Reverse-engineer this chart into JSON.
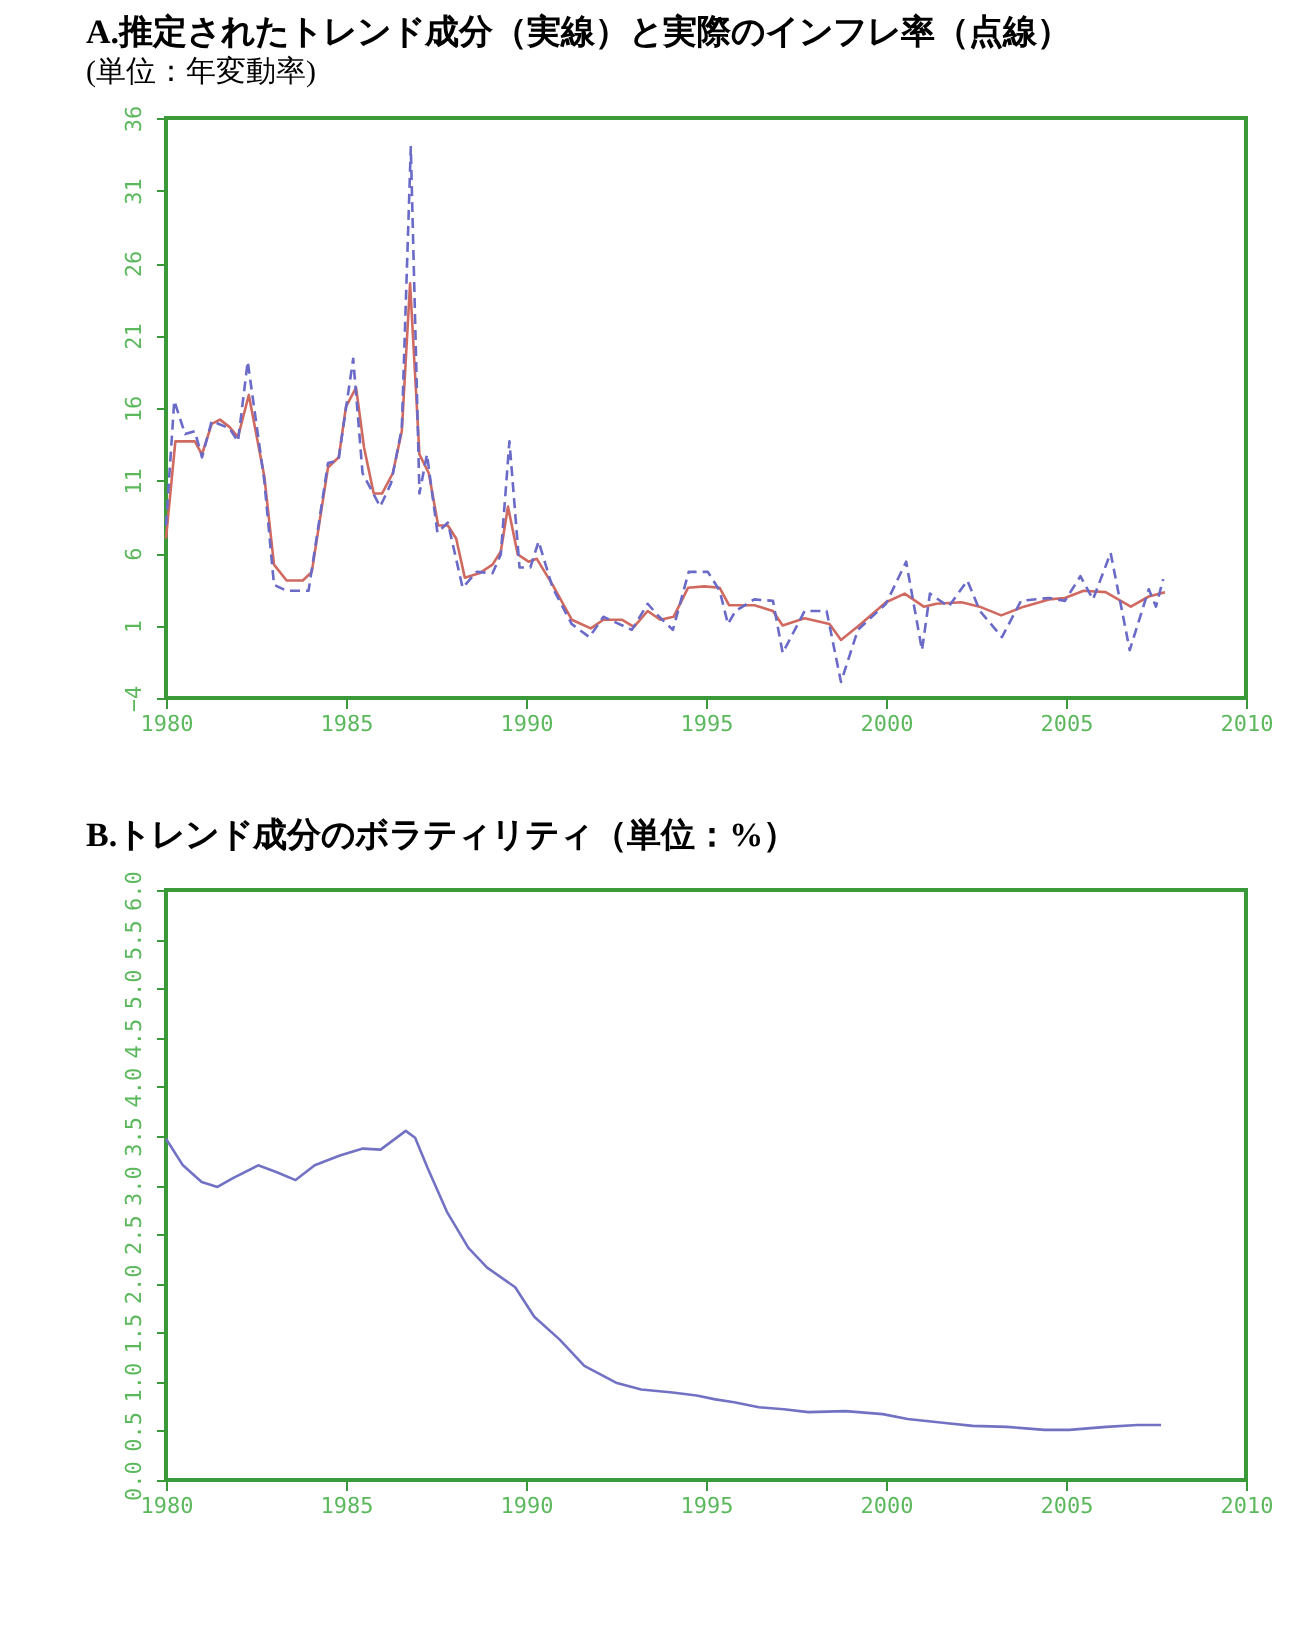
{
  "chart_data": [
    {
      "type": "line",
      "title": "A.推定されたトレンド成分（実線）と実際のインフレ率（点線）",
      "subtitle": "(単位：年変動率)",
      "xlim": [
        1980,
        2010
      ],
      "xticks": [
        1980,
        1985,
        1990,
        1995,
        2000,
        2005,
        2010
      ],
      "ylim": [
        -4,
        36
      ],
      "yticks": [
        -4,
        1,
        6,
        11,
        16,
        21,
        26,
        31,
        36
      ],
      "grid": false,
      "legend": false,
      "series": [
        {
          "color": "#d06a60",
          "line_style": "solid",
          "x": [
            1980.0,
            1980.26,
            1980.8,
            1981.0,
            1981.27,
            1981.5,
            1981.76,
            1982.0,
            1982.3,
            1982.73,
            1983.0,
            1983.35,
            1983.8,
            1984.05,
            1984.5,
            1984.8,
            1985.0,
            1985.28,
            1985.5,
            1985.77,
            1986.0,
            1986.3,
            1986.55,
            1986.78,
            1987.04,
            1987.3,
            1987.56,
            1987.83,
            1988.06,
            1988.3,
            1988.7,
            1989.07,
            1989.3,
            1989.5,
            1989.77,
            1990.07,
            1990.3,
            1990.74,
            1991.27,
            1991.8,
            1992.15,
            1992.66,
            1993.0,
            1993.38,
            1993.73,
            1994.1,
            1994.5,
            1994.96,
            1995.38,
            1995.64,
            1996.34,
            1996.86,
            1997.13,
            1997.74,
            1998.43,
            1998.75,
            1999.3,
            2000.0,
            2000.52,
            2001.05,
            2001.4,
            2002.1,
            2002.6,
            2003.2,
            2003.83,
            2004.53,
            2004.97,
            2005.49,
            2006.1,
            2006.8,
            2007.3,
            2007.75
          ],
          "values": [
            7.0,
            13.7,
            13.7,
            12.8,
            14.9,
            15.2,
            14.7,
            14.0,
            16.9,
            11.3,
            5.2,
            4.1,
            4.1,
            4.7,
            11.9,
            12.6,
            16.1,
            17.4,
            13.3,
            10.1,
            10.1,
            11.5,
            14.4,
            24.6,
            12.8,
            11.5,
            7.9,
            7.9,
            7.0,
            4.3,
            4.6,
            5.2,
            6.1,
            9.2,
            5.9,
            5.4,
            5.6,
            3.8,
            1.4,
            0.8,
            1.4,
            1.4,
            0.9,
            2.0,
            1.4,
            1.6,
            3.6,
            3.7,
            3.6,
            2.4,
            2.4,
            2.0,
            1.0,
            1.5,
            1.1,
            0.0,
            1.1,
            2.6,
            3.2,
            2.3,
            2.5,
            2.6,
            2.3,
            1.7,
            2.3,
            2.8,
            2.9,
            3.4,
            3.3,
            2.3,
            3.0,
            3.3
          ]
        },
        {
          "color": "#6a6ac8",
          "line_style": "dashed",
          "x": [
            1980.0,
            1980.23,
            1980.53,
            1980.8,
            1981.0,
            1981.27,
            1981.76,
            1982.0,
            1982.27,
            1982.73,
            1983.0,
            1983.35,
            1983.96,
            1984.5,
            1984.79,
            1985.2,
            1985.46,
            1985.95,
            1986.25,
            1986.55,
            1986.8,
            1987.04,
            1987.25,
            1987.54,
            1987.83,
            1988.24,
            1988.63,
            1989.07,
            1989.3,
            1989.54,
            1989.82,
            1990.12,
            1990.35,
            1990.74,
            1991.27,
            1991.76,
            1992.15,
            1992.94,
            1993.38,
            1993.7,
            1994.08,
            1994.52,
            1995.05,
            1995.38,
            1995.61,
            1995.82,
            1996.34,
            1996.86,
            1997.13,
            1997.74,
            1998.35,
            1998.75,
            1999.22,
            2000.0,
            2000.56,
            2001.0,
            2001.22,
            2001.74,
            2002.26,
            2002.61,
            2003.22,
            2003.75,
            2004.53,
            2004.97,
            2005.4,
            2005.75,
            2006.24,
            2006.77,
            2007.3,
            2007.5,
            2007.7
          ],
          "values": [
            7.9,
            16.5,
            14.2,
            14.4,
            12.6,
            15.1,
            14.6,
            13.7,
            19.2,
            11.0,
            3.8,
            3.4,
            3.4,
            12.2,
            12.4,
            19.4,
            11.5,
            9.2,
            10.8,
            14.6,
            34.0,
            10.1,
            12.8,
            7.4,
            8.1,
            3.6,
            4.7,
            4.6,
            5.9,
            13.7,
            5.0,
            5.0,
            6.8,
            3.6,
            1.1,
            0.2,
            1.6,
            0.7,
            2.5,
            1.6,
            0.7,
            4.7,
            4.7,
            3.4,
            1.1,
            2.0,
            2.8,
            2.7,
            -0.9,
            2.0,
            2.0,
            -2.9,
            0.7,
            2.5,
            5.4,
            -0.7,
            3.2,
            2.3,
            4.1,
            2.0,
            0.2,
            2.7,
            2.9,
            2.7,
            4.4,
            2.8,
            6.0,
            -0.7,
            3.5,
            2.3,
            4.2
          ]
        }
      ]
    },
    {
      "type": "line",
      "title": "B.トレンド成分のボラティリティ（単位：%）",
      "xlim": [
        1980,
        2010
      ],
      "xticks": [
        1980,
        1985,
        1990,
        1995,
        2000,
        2005,
        2010
      ],
      "ylim": [
        0,
        6
      ],
      "yticks": [
        {
          "value": 0,
          "label": "0.0"
        },
        {
          "value": 0.5,
          "label": "0.5"
        },
        {
          "value": 1,
          "label": "1.0"
        },
        {
          "value": 1.5,
          "label": "1.5"
        },
        {
          "value": 2,
          "label": "2.0"
        },
        {
          "value": 2.5,
          "label": "2.5"
        },
        {
          "value": 3,
          "label": "3.0"
        },
        {
          "value": 3.5,
          "label": "3.5"
        },
        {
          "value": 4,
          "label": "4.0"
        },
        {
          "value": 4.5,
          "label": "4.5"
        },
        {
          "value": 5,
          "label": "5.0"
        },
        {
          "value": 5.5,
          "label": "5.5"
        },
        {
          "value": 6,
          "label": "6.0"
        }
      ],
      "grid": false,
      "legend": false,
      "series": [
        {
          "color": "#7272c4",
          "line_style": "solid",
          "x": [
            1980.0,
            1980.47,
            1980.99,
            1981.43,
            1981.86,
            1982.56,
            1983.08,
            1983.6,
            1984.13,
            1984.83,
            1985.47,
            1985.96,
            1986.66,
            1986.92,
            1987.27,
            1987.8,
            1988.4,
            1988.92,
            1989.7,
            1990.23,
            1990.93,
            1991.62,
            1992.5,
            1993.2,
            1994.07,
            1994.74,
            1995.26,
            1995.78,
            1996.47,
            1997.16,
            1997.84,
            1998.88,
            1999.91,
            2000.6,
            2001.64,
            2002.41,
            2003.36,
            2004.4,
            2005.09,
            2006.12,
            2006.98,
            2007.64
          ],
          "values": [
            3.47,
            3.2,
            3.03,
            2.98,
            3.07,
            3.2,
            3.13,
            3.05,
            3.2,
            3.3,
            3.37,
            3.36,
            3.55,
            3.48,
            3.17,
            2.73,
            2.36,
            2.16,
            1.96,
            1.66,
            1.43,
            1.16,
            0.99,
            0.92,
            0.89,
            0.86,
            0.82,
            0.79,
            0.74,
            0.72,
            0.69,
            0.7,
            0.67,
            0.62,
            0.58,
            0.55,
            0.54,
            0.51,
            0.51,
            0.54,
            0.56,
            0.56
          ]
        }
      ]
    }
  ]
}
